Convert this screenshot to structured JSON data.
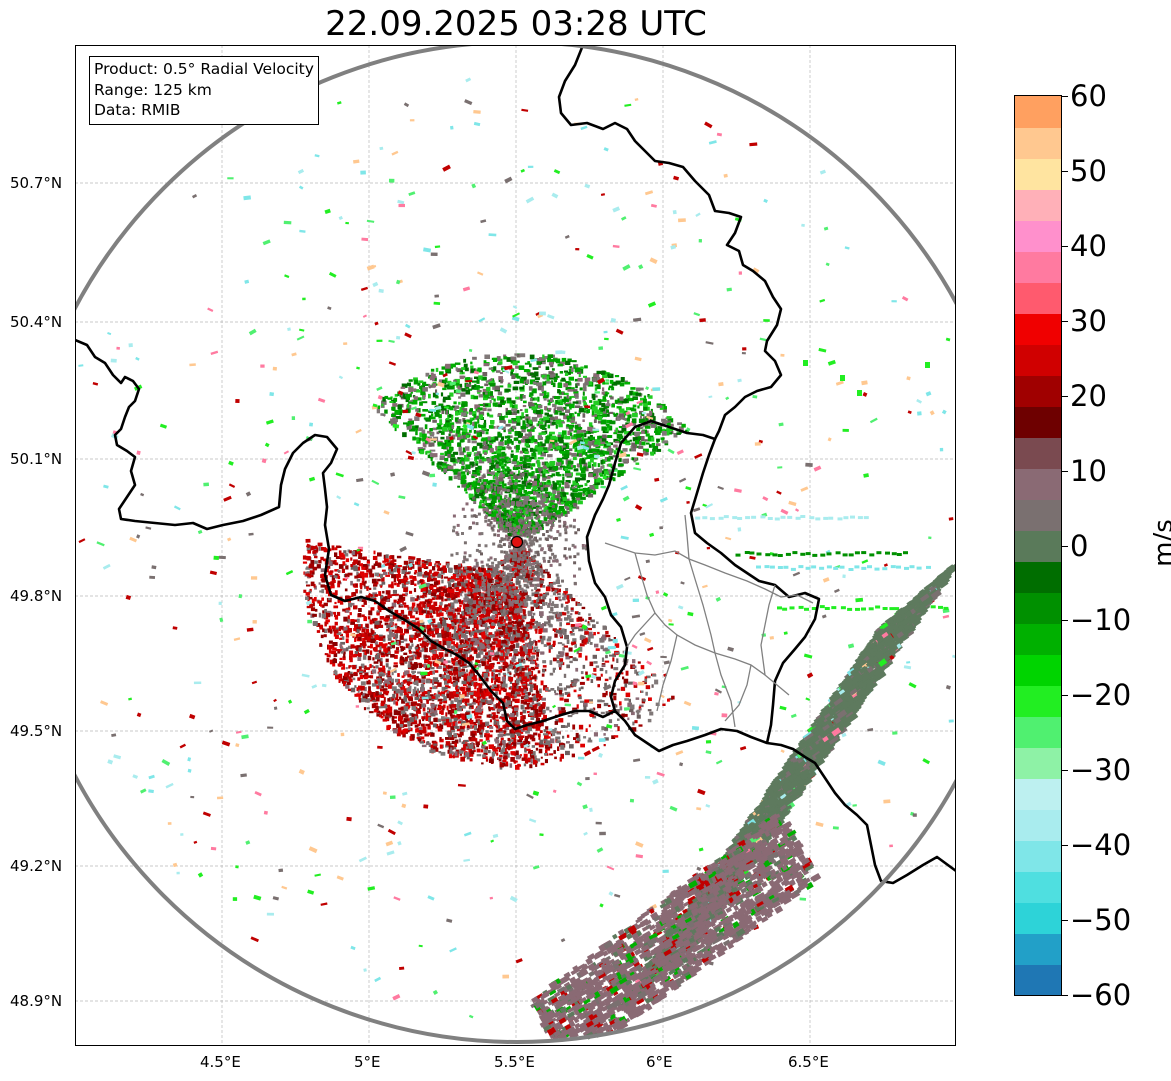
{
  "title": "22.09.2025 03:28 UTC",
  "info": {
    "product": "Product: 0.5° Radial Velocity",
    "range": "Range: 125 km",
    "data": "Data: RMIB"
  },
  "lat_labels": [
    "50.7°N",
    "50.4°N",
    "50.1°N",
    "49.8°N",
    "49.5°N",
    "49.2°N",
    "48.9°N"
  ],
  "lon_labels": [
    "4.5°E",
    "5°E",
    "5.5°E",
    "6°E",
    "6.5°E"
  ],
  "colorbar": {
    "unit": "m/s",
    "min": -60,
    "max": 60,
    "tick_labels": [
      "60",
      "50",
      "40",
      "30",
      "20",
      "10",
      "0",
      "−10",
      "−20",
      "−30",
      "−40",
      "−50",
      "−60"
    ],
    "colors": [
      "#1f77b4",
      "#22a0c8",
      "#2dd3d8",
      "#4fdfe0",
      "#7fe6e8",
      "#a9ecee",
      "#bdf0f0",
      "#8ef2a6",
      "#50f070",
      "#22ee22",
      "#00d400",
      "#00b000",
      "#009000",
      "#006e00",
      "#5a7a5a",
      "#7a7070",
      "#8a6a74",
      "#7a4a50",
      "#6e0000",
      "#a00000",
      "#d00000",
      "#f00000",
      "#ff5a6e",
      "#ff7aa0",
      "#ff90cc",
      "#ffb0b8",
      "#ffe4a0",
      "#ffc890",
      "#ffa060"
    ]
  },
  "radar": {
    "site_marker": "radar-site",
    "lon": 5.5,
    "lat": 49.91
  }
}
